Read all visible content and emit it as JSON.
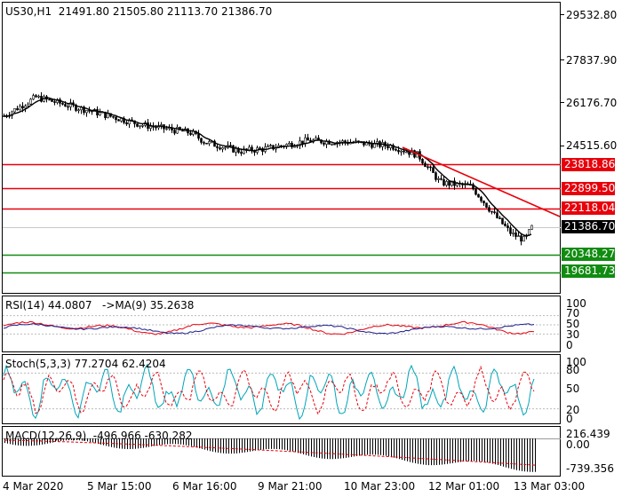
{
  "symbol_line": "US30,H1  21491.80 21505.80 21113.70 21386.70",
  "price_axis": [
    "29532.80",
    "27837.90",
    "26176.70",
    "24515.60",
    "21386.70"
  ],
  "levels": [
    {
      "label": "23818.86",
      "value": 23818.86,
      "color": "#e8000b"
    },
    {
      "label": "22899.50",
      "value": 22899.5,
      "color": "#e8000b"
    },
    {
      "label": "22118.04",
      "value": 22118.04,
      "color": "#e8000b"
    },
    {
      "label": "20348.27",
      "value": 20348.27,
      "color": "#118c11"
    },
    {
      "label": "19681.73",
      "value": 19681.73,
      "color": "#118c11"
    }
  ],
  "current_price": {
    "label": "21386.70",
    "value": 21386.7
  },
  "rsi": {
    "header": "RSI(14) 44.0807   ->MA(9) 35.2638",
    "axis": [
      "100",
      "70",
      "50",
      "30",
      "0"
    ]
  },
  "stoch": {
    "header": "Stoch(5,3,3) 77.2704 62.4204",
    "axis": [
      "100",
      "80",
      "50",
      "20",
      "0"
    ]
  },
  "macd": {
    "header": "MACD(12,26,9)  -496.966 -630.282",
    "axis": [
      "216.439",
      "0.00",
      "-739.356"
    ]
  },
  "dates": [
    "4 Mar 2020",
    "5 Mar 15:00",
    "6 Mar 16:00",
    "9 Mar 21:00",
    "10 Mar 23:00",
    "12 Mar 01:00",
    "13 Mar 03:00"
  ],
  "colors": {
    "candle": "#000000",
    "ma": "#000000",
    "trend": "#e8000b",
    "signal": "#e8000b",
    "stoch_k": "#00a5b8",
    "rsi_main": "#1c1c8c"
  }
}
